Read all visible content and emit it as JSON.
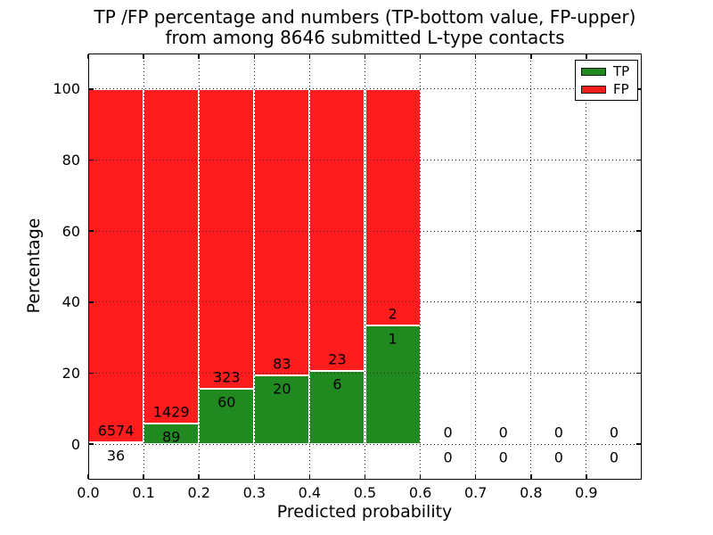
{
  "figure": {
    "title_line1": "TP /FP percentage and numbers (TP-bottom value, FP-upper)",
    "title_line2": "from among 8646 submitted L-type contacts"
  },
  "chart_data": {
    "type": "bar",
    "stacked": true,
    "title": "TP /FP percentage and numbers (TP-bottom value, FP-upper)\nfrom among 8646 submitted L-type contacts",
    "xlabel": "Predicted probability",
    "ylabel": "Percentage",
    "total_submitted_contacts": 8646,
    "xlim": [
      0.0,
      1.0
    ],
    "ylim": [
      -10,
      110
    ],
    "bar_width": 0.1,
    "bin_starts": [
      0.0,
      0.1,
      0.2,
      0.3,
      0.4,
      0.5,
      0.6,
      0.7,
      0.8,
      0.9
    ],
    "xticks": [
      "0.0",
      "0.1",
      "0.2",
      "0.3",
      "0.4",
      "0.5",
      "0.6",
      "0.7",
      "0.8",
      "0.9"
    ],
    "yticks": [
      "0",
      "20",
      "40",
      "60",
      "80",
      "100"
    ],
    "grid": {
      "style": "dotted",
      "color": "#000000",
      "on": true
    },
    "series": [
      {
        "name": "TP",
        "color": "#208a20",
        "counts": [
          36,
          89,
          60,
          20,
          6,
          1,
          0,
          0,
          0,
          0
        ]
      },
      {
        "name": "FP",
        "color": "#ff1c1c",
        "counts": [
          6574,
          1429,
          323,
          83,
          23,
          2,
          0,
          0,
          0,
          0
        ]
      }
    ],
    "tp_percent": [
      0.5,
      5.9,
      15.7,
      19.4,
      20.7,
      33.3,
      0,
      0,
      0,
      0
    ],
    "fp_percent": [
      99.5,
      94.1,
      84.3,
      80.6,
      79.3,
      66.7,
      0,
      0,
      0,
      0
    ],
    "legend": {
      "position": "upper right",
      "entries": [
        {
          "label": "TP",
          "color": "#208a20"
        },
        {
          "label": "FP",
          "color": "#ff1c1c"
        }
      ]
    }
  }
}
